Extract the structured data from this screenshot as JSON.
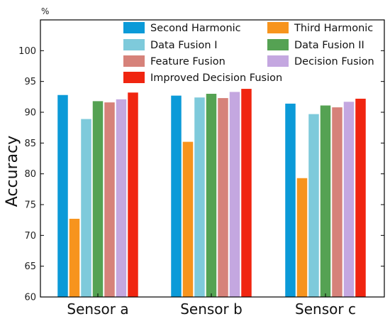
{
  "chart_data": {
    "type": "bar",
    "ylabel": "Accuracy",
    "y_unit": "%",
    "ylim": [
      60,
      105
    ],
    "yticks": [
      60,
      65,
      70,
      75,
      80,
      85,
      90,
      95,
      100
    ],
    "grid": false,
    "legend_position": "top-right",
    "categories": [
      "Sensor a",
      "Sensor b",
      "Sensor c"
    ],
    "series": [
      {
        "name": "Second Harmonic",
        "color": "#0b9ad8",
        "values": [
          92.8,
          92.7,
          91.4
        ]
      },
      {
        "name": "Third Harmonic",
        "color": "#f7941d",
        "values": [
          72.7,
          85.2,
          79.3
        ]
      },
      {
        "name": "Data Fusion I",
        "color": "#7ecadb",
        "values": [
          88.9,
          92.4,
          89.7
        ]
      },
      {
        "name": "Data Fusion II",
        "color": "#55a253",
        "values": [
          91.8,
          93.0,
          91.1
        ]
      },
      {
        "name": "Feature Fusion",
        "color": "#d6827a",
        "values": [
          91.6,
          92.3,
          90.8
        ]
      },
      {
        "name": "Decision Fusion",
        "color": "#c4a7e0",
        "values": [
          92.1,
          93.3,
          91.7
        ]
      },
      {
        "name": "Improved Decision Fusion",
        "color": "#f02510",
        "values": [
          93.2,
          93.8,
          92.2
        ]
      }
    ]
  }
}
